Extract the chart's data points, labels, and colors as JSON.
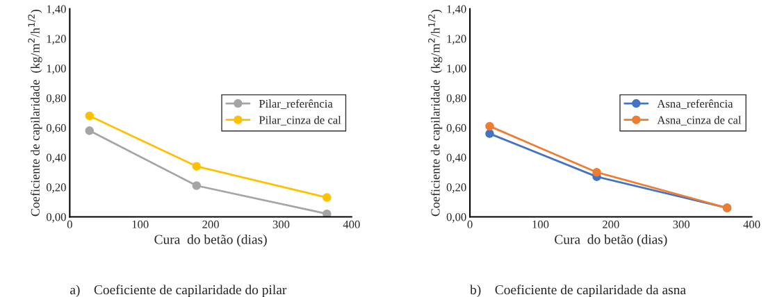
{
  "chart_data": [
    {
      "type": "line",
      "title": "a)    Coeficiente de capilaridade do pilar",
      "xlabel": "Cura  do betão (dias)",
      "ylabel": "Coeficiente de capilaridade  (kg/m$^{2}$/h$^{1/2}$)",
      "x": [
        28,
        180,
        365
      ],
      "series": [
        {
          "name": "Pilar_referência",
          "color": "#a5a5a5",
          "values": [
            0.58,
            0.21,
            0.02
          ]
        },
        {
          "name": "Pilar_cinza de cal",
          "color": "#ffc000",
          "values": [
            0.68,
            0.34,
            0.13
          ]
        }
      ],
      "xlim": [
        0,
        400
      ],
      "xticks": [
        0,
        100,
        200,
        300,
        400
      ],
      "ylim": [
        0,
        1.4
      ],
      "yticks": [
        {
          "value": 0,
          "label": "0,00"
        },
        {
          "value": 0.2,
          "label": "0,20"
        },
        {
          "value": 0.4,
          "label": "0,40"
        },
        {
          "value": 0.6,
          "label": "0,60"
        },
        {
          "value": 0.8,
          "label": "0,80"
        },
        {
          "value": 1.0,
          "label": "1,00"
        },
        {
          "value": 1.2,
          "label": "1,20"
        },
        {
          "value": 1.4,
          "label": "1,40"
        }
      ],
      "legend": "center right",
      "marker": "circle",
      "line_style": "solid",
      "grid": false
    },
    {
      "type": "line",
      "title": "b)    Coeficiente de capilaridade da asna",
      "xlabel": "Cura  do betão (dias)",
      "ylabel": "Coeficiente de capilaridade  (kg/m$^{2}$/h$^{1/2}$)",
      "x": [
        28,
        180,
        365
      ],
      "series": [
        {
          "name": "Asna_referência",
          "color": "#4472c4",
          "values": [
            0.56,
            0.27,
            0.06
          ]
        },
        {
          "name": "Asna_cinza de cal",
          "color": "#ed7d31",
          "values": [
            0.61,
            0.3,
            0.06
          ]
        }
      ],
      "xlim": [
        0,
        400
      ],
      "xticks": [
        0,
        100,
        200,
        300,
        400
      ],
      "ylim": [
        0,
        1.4
      ],
      "yticks": [
        {
          "value": 0,
          "label": "0,00"
        },
        {
          "value": 0.2,
          "label": "0,20"
        },
        {
          "value": 0.4,
          "label": "0,40"
        },
        {
          "value": 0.6,
          "label": "0,60"
        },
        {
          "value": 0.8,
          "label": "0,80"
        },
        {
          "value": 1.0,
          "label": "1,00"
        },
        {
          "value": 1.2,
          "label": "1,20"
        },
        {
          "value": 1.4,
          "label": "1,40"
        }
      ],
      "legend": "center right",
      "marker": "circle",
      "line_style": "solid",
      "grid": false
    }
  ]
}
